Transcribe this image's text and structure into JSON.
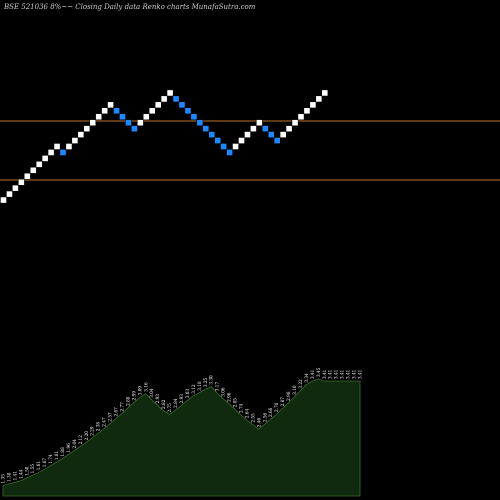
{
  "header": {
    "title": "BSE 521036  8%~~  Closing Daily data  Renko  charts MunafaSutra.com"
  },
  "colors": {
    "background": "#000000",
    "brick_up": "#ffffff",
    "brick_down": "#1e88ff",
    "reference_line": "#c0752c",
    "area_fill": "#0f2a0f",
    "area_stroke": "#3b6b2a"
  },
  "chart_data": {
    "type": "renko",
    "bricks": [
      "up",
      "up",
      "up",
      "up",
      "up",
      "up",
      "up",
      "up",
      "up",
      "up",
      "down",
      "up",
      "up",
      "up",
      "up",
      "up",
      "up",
      "up",
      "up",
      "down",
      "down",
      "down",
      "down",
      "up",
      "up",
      "up",
      "up",
      "up",
      "up",
      "down",
      "down",
      "down",
      "down",
      "down",
      "down",
      "down",
      "down",
      "down",
      "down",
      "up",
      "up",
      "up",
      "up",
      "up",
      "down",
      "down",
      "down",
      "up",
      "up",
      "up",
      "up",
      "up",
      "up",
      "up",
      "up"
    ],
    "reference_lines": [
      121,
      180
    ],
    "area_labels": [
      "1.35",
      "1.38",
      "1.41",
      "1.44",
      "1.50",
      "1.55",
      "1.61",
      "1.67",
      "1.74",
      "1.81",
      "1.88",
      "1.96",
      "2.04",
      "2.12",
      "2.20",
      "2.29",
      "2.38",
      "2.47",
      "2.57",
      "2.67",
      "2.77",
      "2.88",
      "2.99",
      "3.09",
      "3.16",
      "3.04",
      "2.93",
      "2.82",
      "2.75",
      "2.84",
      "2.93",
      "3.03",
      "3.12",
      "3.18",
      "3.25",
      "3.30",
      "3.17",
      "3.06",
      "2.96",
      "2.85",
      "2.74",
      "2.64",
      "2.55",
      "2.46",
      "2.56",
      "2.66",
      "2.76",
      "2.87",
      "2.98",
      "3.10",
      "3.22",
      "3.34",
      "3.41",
      "3.45",
      "3.41",
      "3.41",
      "3.41",
      "3.41",
      "3.41",
      "3.41",
      "3.41"
    ]
  }
}
